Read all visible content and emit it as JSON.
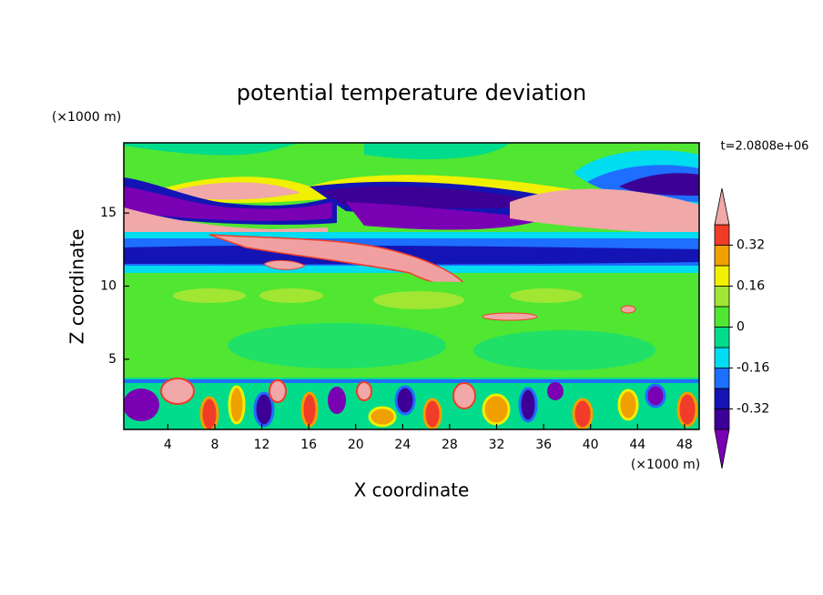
{
  "chart_data": {
    "type": "contour",
    "title": "potential temperature deviation",
    "x_label": "X coordinate",
    "y_label": "Z coordinate",
    "x_unit": "(×1000 m)",
    "y_unit": "(×1000 m)",
    "time_label": "t=2.0808e+06",
    "xlim": [
      0.25,
      49.25
    ],
    "xticks": [
      4,
      8,
      12,
      16,
      20,
      24,
      28,
      32,
      36,
      40,
      44,
      48
    ],
    "ylim": [
      0.2,
      19.8
    ],
    "yticks": [
      5,
      10,
      15
    ],
    "colorbar": {
      "levels": [
        -0.4,
        -0.32,
        -0.24,
        -0.16,
        -0.08,
        0,
        0.08,
        0.16,
        0.24,
        0.32,
        0.4
      ],
      "ticks": [
        -0.32,
        -0.16,
        0,
        0.16,
        0.32
      ],
      "colors": [
        "#7a00b4",
        "#3c0096",
        "#1414b4",
        "#1e6eff",
        "#00dcf0",
        "#00dc8c",
        "#50e632",
        "#a0e632",
        "#f0f000",
        "#f0a000",
        "#f03c28",
        "#f0a8a8"
      ]
    }
  }
}
